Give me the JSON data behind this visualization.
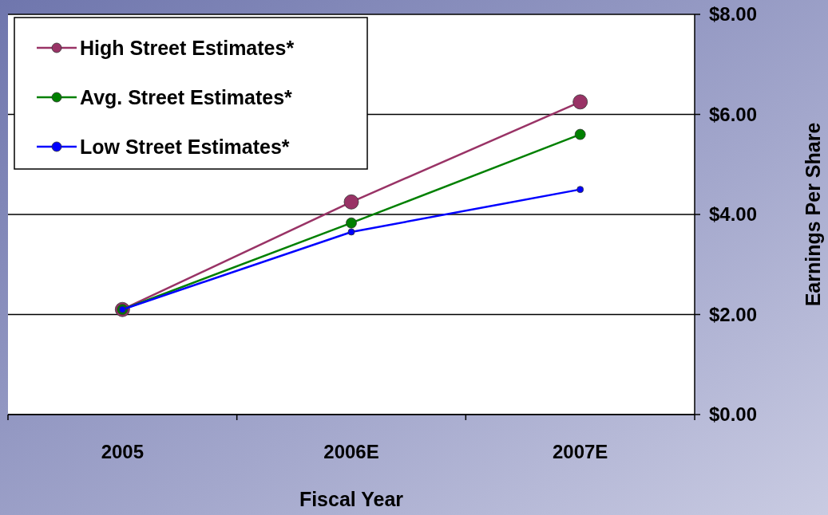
{
  "chart_data": {
    "type": "line",
    "xlabel": "Fiscal Year",
    "ylabel": "Earnings Per Share",
    "categories": [
      "2005",
      "2006E",
      "2007E"
    ],
    "series": [
      {
        "name": "High Street Estimates*",
        "color": "#993366",
        "values": [
          2.1,
          4.25,
          6.25
        ]
      },
      {
        "name": "Avg. Street Estimates*",
        "color": "#008000",
        "values": [
          2.1,
          3.83,
          5.6
        ]
      },
      {
        "name": "Low Street Estimates*",
        "color": "#0000ff",
        "values": [
          2.1,
          3.65,
          4.5
        ]
      }
    ],
    "ylim": [
      0,
      8
    ],
    "yticks": [
      {
        "value": 0,
        "label": "$0.00"
      },
      {
        "value": 2,
        "label": "$2.00"
      },
      {
        "value": 4,
        "label": "$4.00"
      },
      {
        "value": 6,
        "label": "$6.00"
      },
      {
        "value": 8,
        "label": "$8.00"
      }
    ],
    "grid": "y",
    "legend": "top left",
    "marker": "circle",
    "line_style": "solid"
  }
}
